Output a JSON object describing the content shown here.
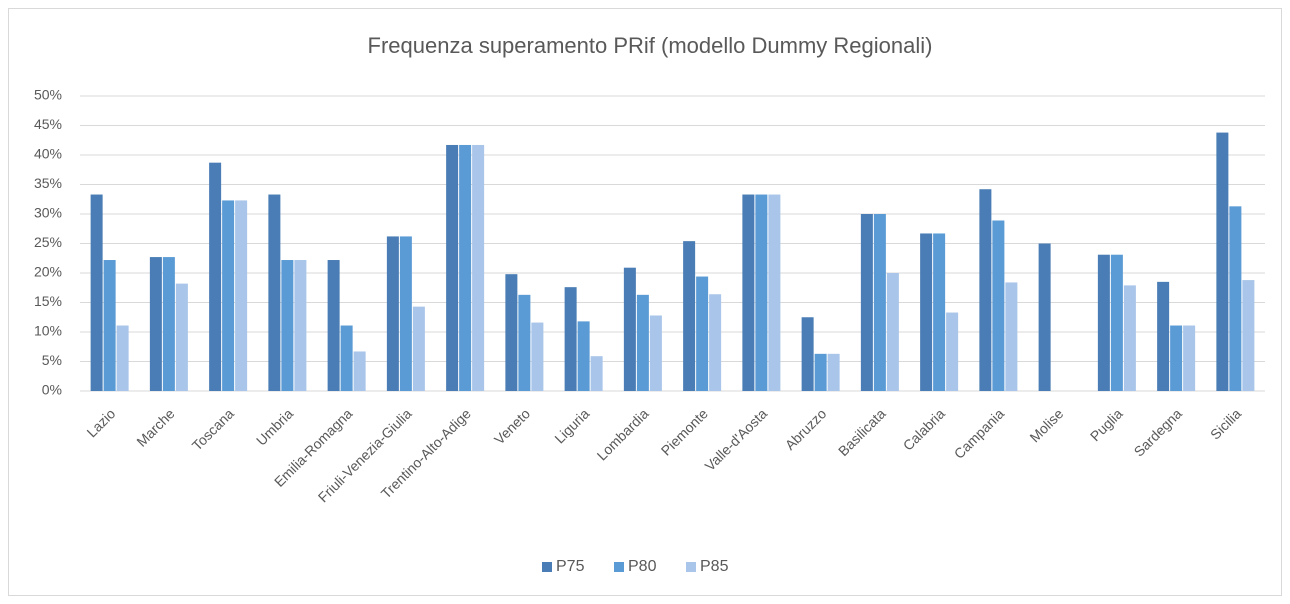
{
  "chart_data": {
    "type": "bar",
    "title": "Frequenza superamento PRif (modello Dummy Regionali)",
    "categories": [
      "Lazio",
      "Marche",
      "Toscana",
      "Umbria",
      "Emilia-Romagna",
      "Friuli-Venezia-Giulia",
      "Trentino-Alto-Adige",
      "Veneto",
      "Liguria",
      "Lombardia",
      "Piemonte",
      "Valle-d'Aosta",
      "Abruzzo",
      "Basilicata",
      "Calabria",
      "Campania",
      "Molise",
      "Puglia",
      "Sardegna",
      "Sicilia"
    ],
    "series": [
      {
        "name": "P75",
        "color": "#4a7db5",
        "values": [
          33.3,
          22.7,
          38.7,
          33.3,
          22.2,
          26.2,
          41.7,
          19.8,
          17.6,
          20.9,
          25.4,
          33.3,
          12.5,
          30,
          26.7,
          34.2,
          25,
          23.1,
          18.5,
          43.8
        ]
      },
      {
        "name": "P80",
        "color": "#5b9bd5",
        "values": [
          22.2,
          22.7,
          32.3,
          22.2,
          11.1,
          26.2,
          41.7,
          16.3,
          11.8,
          16.3,
          19.4,
          33.3,
          6.3,
          30,
          26.7,
          28.9,
          0,
          23.1,
          11.1,
          31.3
        ]
      },
      {
        "name": "P85",
        "color": "#a9c5e9",
        "values": [
          11.1,
          18.2,
          32.3,
          22.2,
          6.7,
          14.3,
          41.7,
          11.6,
          5.9,
          12.8,
          16.4,
          33.3,
          6.3,
          20,
          13.3,
          18.4,
          0,
          17.9,
          11.1,
          18.8
        ]
      }
    ],
    "ylim": [
      0,
      50
    ],
    "yticks": [
      {
        "value": 0,
        "label": "0%"
      },
      {
        "value": 5,
        "label": "5%"
      },
      {
        "value": 10,
        "label": "10%"
      },
      {
        "value": 15,
        "label": "15%"
      },
      {
        "value": 20,
        "label": "20%"
      },
      {
        "value": 25,
        "label": "25%"
      },
      {
        "value": 30,
        "label": "30%"
      },
      {
        "value": 35,
        "label": "35%"
      },
      {
        "value": 40,
        "label": "40%"
      },
      {
        "value": 45,
        "label": "45%"
      },
      {
        "value": 50,
        "label": "50%"
      }
    ],
    "grid": true,
    "legend": "bottom"
  }
}
